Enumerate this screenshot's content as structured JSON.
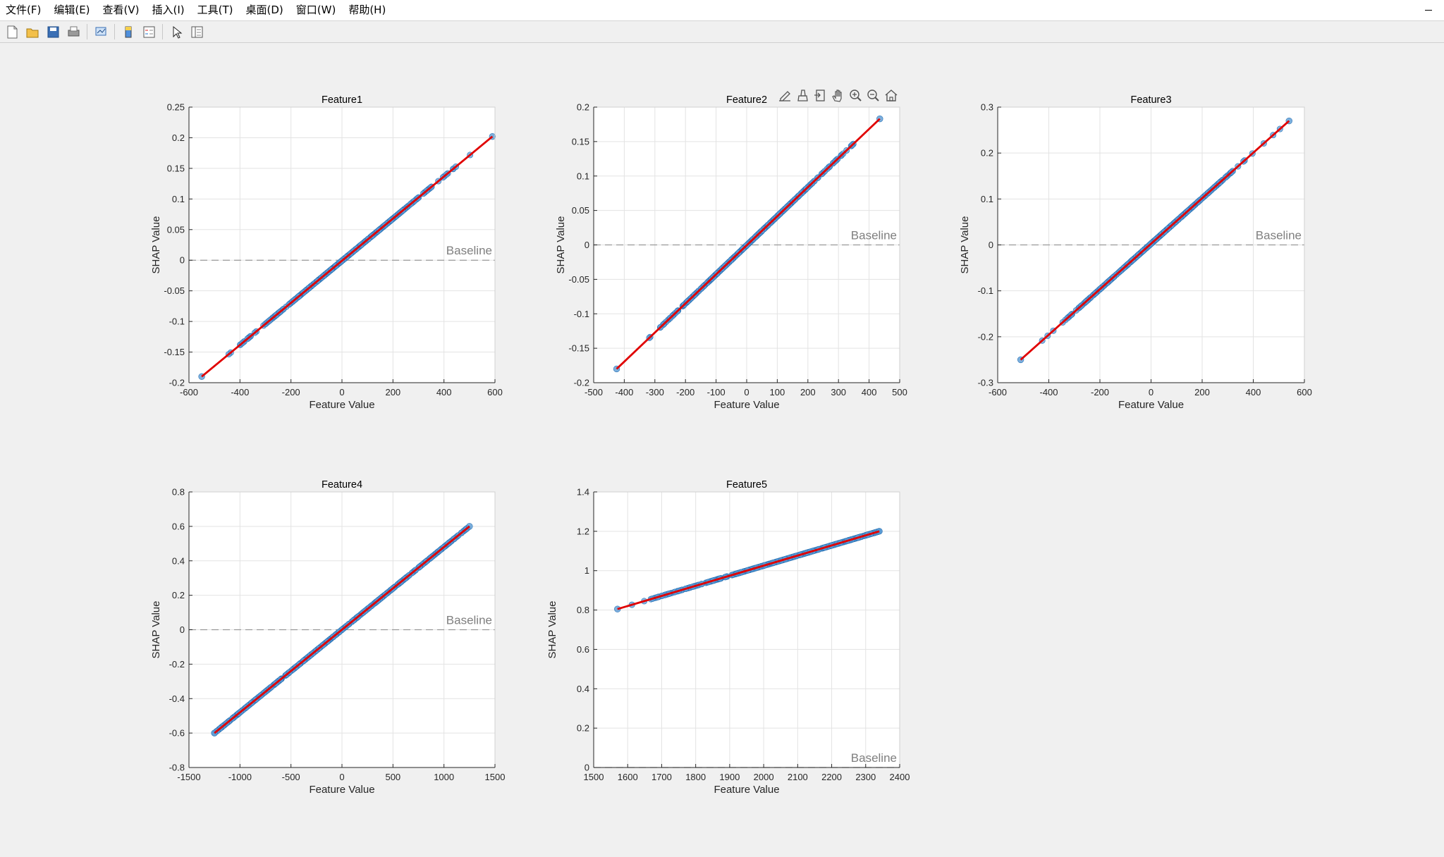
{
  "menu": {
    "items": [
      "文件(F)",
      "编辑(E)",
      "查看(V)",
      "插入(I)",
      "工具(T)",
      "桌面(D)",
      "窗口(W)",
      "帮助(H)"
    ]
  },
  "toolbar": {
    "buttons": [
      "new-figure-icon",
      "open-file-icon",
      "save-icon",
      "print-icon",
      "link-plot-icon",
      "colorbar-icon",
      "legend-icon",
      "edit-plot-arrow-icon",
      "property-inspector-icon"
    ]
  },
  "axes_toolbar": {
    "buttons": [
      "data-tips-icon",
      "brush-icon",
      "export-icon",
      "pan-hand-icon",
      "zoom-in-icon",
      "zoom-out-icon",
      "restore-home-icon"
    ]
  },
  "colors": {
    "scatter": "#5b9bd5",
    "scatter_edge": "#2e75b6",
    "fit_line": "#e00000",
    "baseline": "#999999",
    "grid": "#e3e3e3",
    "axes_bg": "#ffffff"
  },
  "chart_data": [
    {
      "type": "scatter",
      "title": "Feature1",
      "xlabel": "Feature Value",
      "ylabel": "SHAP Value",
      "xlim": [
        -600,
        600
      ],
      "ylim": [
        -0.2,
        0.25
      ],
      "xticks": [
        -600,
        -400,
        -200,
        0,
        200,
        400,
        600
      ],
      "yticks": [
        -0.2,
        -0.15,
        -0.1,
        -0.05,
        0,
        0.05,
        0.1,
        0.15,
        0.2,
        0.25
      ],
      "xtick_labels": [
        "-600",
        "-400",
        "-200",
        "0",
        "200",
        "400",
        "600"
      ],
      "ytick_labels": [
        "-0.2",
        "-0.15",
        "-0.1",
        "-0.05",
        "0",
        "0.05",
        "0.1",
        "0.15",
        "0.2",
        "0.25"
      ],
      "x_range": [
        -550,
        590
      ],
      "fit_line": {
        "x": [
          -550,
          590
        ],
        "y": [
          -0.19,
          0.202
        ]
      },
      "baseline": {
        "y": 0,
        "label": "Baseline"
      },
      "grid": true,
      "point_spread": "dense-center"
    },
    {
      "type": "scatter",
      "title": "Feature2",
      "xlabel": "Feature Value",
      "ylabel": "SHAP Value",
      "xlim": [
        -500,
        500
      ],
      "ylim": [
        -0.2,
        0.2
      ],
      "xticks": [
        -500,
        -400,
        -300,
        -200,
        -100,
        0,
        100,
        200,
        300,
        400,
        500
      ],
      "yticks": [
        -0.2,
        -0.15,
        -0.1,
        -0.05,
        0,
        0.05,
        0.1,
        0.15,
        0.2
      ],
      "xtick_labels": [
        "-500",
        "-400",
        "-300",
        "-200",
        "-100",
        "0",
        "100",
        "200",
        "300",
        "400",
        "500"
      ],
      "ytick_labels": [
        "-0.2",
        "-0.15",
        "-0.1",
        "-0.05",
        "0",
        "0.05",
        "0.1",
        "0.15",
        "0.2"
      ],
      "x_range": [
        -425,
        435
      ],
      "fit_line": {
        "x": [
          -425,
          435
        ],
        "y": [
          -0.18,
          0.183
        ]
      },
      "baseline": {
        "y": 0,
        "label": "Baseline"
      },
      "grid": true,
      "point_spread": "dense-center"
    },
    {
      "type": "scatter",
      "title": "Feature3",
      "xlabel": "Feature Value",
      "ylabel": "SHAP Value",
      "xlim": [
        -600,
        600
      ],
      "ylim": [
        -0.3,
        0.3
      ],
      "xticks": [
        -600,
        -400,
        -200,
        0,
        200,
        400,
        600
      ],
      "yticks": [
        -0.3,
        -0.2,
        -0.1,
        0,
        0.1,
        0.2,
        0.3
      ],
      "xtick_labels": [
        "-600",
        "-400",
        "-200",
        "0",
        "200",
        "400",
        "600"
      ],
      "ytick_labels": [
        "-0.3",
        "-0.2",
        "-0.1",
        "0",
        "0.1",
        "0.2",
        "0.3"
      ],
      "x_range": [
        -510,
        540
      ],
      "fit_line": {
        "x": [
          -510,
          540
        ],
        "y": [
          -0.25,
          0.27
        ]
      },
      "baseline": {
        "y": 0,
        "label": "Baseline"
      },
      "grid": true,
      "point_spread": "dense-center"
    },
    {
      "type": "scatter",
      "title": "Feature4",
      "xlabel": "Feature Value",
      "ylabel": "SHAP Value",
      "xlim": [
        -1500,
        1500
      ],
      "ylim": [
        -0.8,
        0.8
      ],
      "xticks": [
        -1500,
        -1000,
        -500,
        0,
        500,
        1000,
        1500
      ],
      "yticks": [
        -0.8,
        -0.6,
        -0.4,
        -0.2,
        0,
        0.2,
        0.4,
        0.6,
        0.8
      ],
      "xtick_labels": [
        "-1500",
        "-1000",
        "-500",
        "0",
        "500",
        "1000",
        "1500"
      ],
      "ytick_labels": [
        "-0.8",
        "-0.6",
        "-0.4",
        "-0.2",
        "0",
        "0.2",
        "0.4",
        "0.6",
        "0.8"
      ],
      "x_range": [
        -1250,
        1250
      ],
      "fit_line": {
        "x": [
          -1250,
          1250
        ],
        "y": [
          -0.6,
          0.6
        ]
      },
      "baseline": {
        "y": 0,
        "label": "Baseline"
      },
      "grid": true,
      "point_spread": "uniform"
    },
    {
      "type": "scatter",
      "title": "Feature5",
      "xlabel": "Feature Value",
      "ylabel": "SHAP Value",
      "xlim": [
        1500,
        2400
      ],
      "ylim": [
        0,
        1.4
      ],
      "xticks": [
        1500,
        1600,
        1700,
        1800,
        1900,
        2000,
        2100,
        2200,
        2300,
        2400
      ],
      "yticks": [
        0,
        0.2,
        0.4,
        0.6,
        0.8,
        1,
        1.2,
        1.4
      ],
      "xtick_labels": [
        "1500",
        "1600",
        "1700",
        "1800",
        "1900",
        "2000",
        "2100",
        "2200",
        "2300",
        "2400"
      ],
      "ytick_labels": [
        "0",
        "0.2",
        "0.4",
        "0.6",
        "0.8",
        "1",
        "1.2",
        "1.4"
      ],
      "x_range": [
        1570,
        2340
      ],
      "fit_line": {
        "x": [
          1570,
          2340
        ],
        "y": [
          0.805,
          1.2
        ]
      },
      "baseline": {
        "y": 0,
        "label": "Baseline"
      },
      "grid": true,
      "point_spread": "dense-right"
    }
  ]
}
